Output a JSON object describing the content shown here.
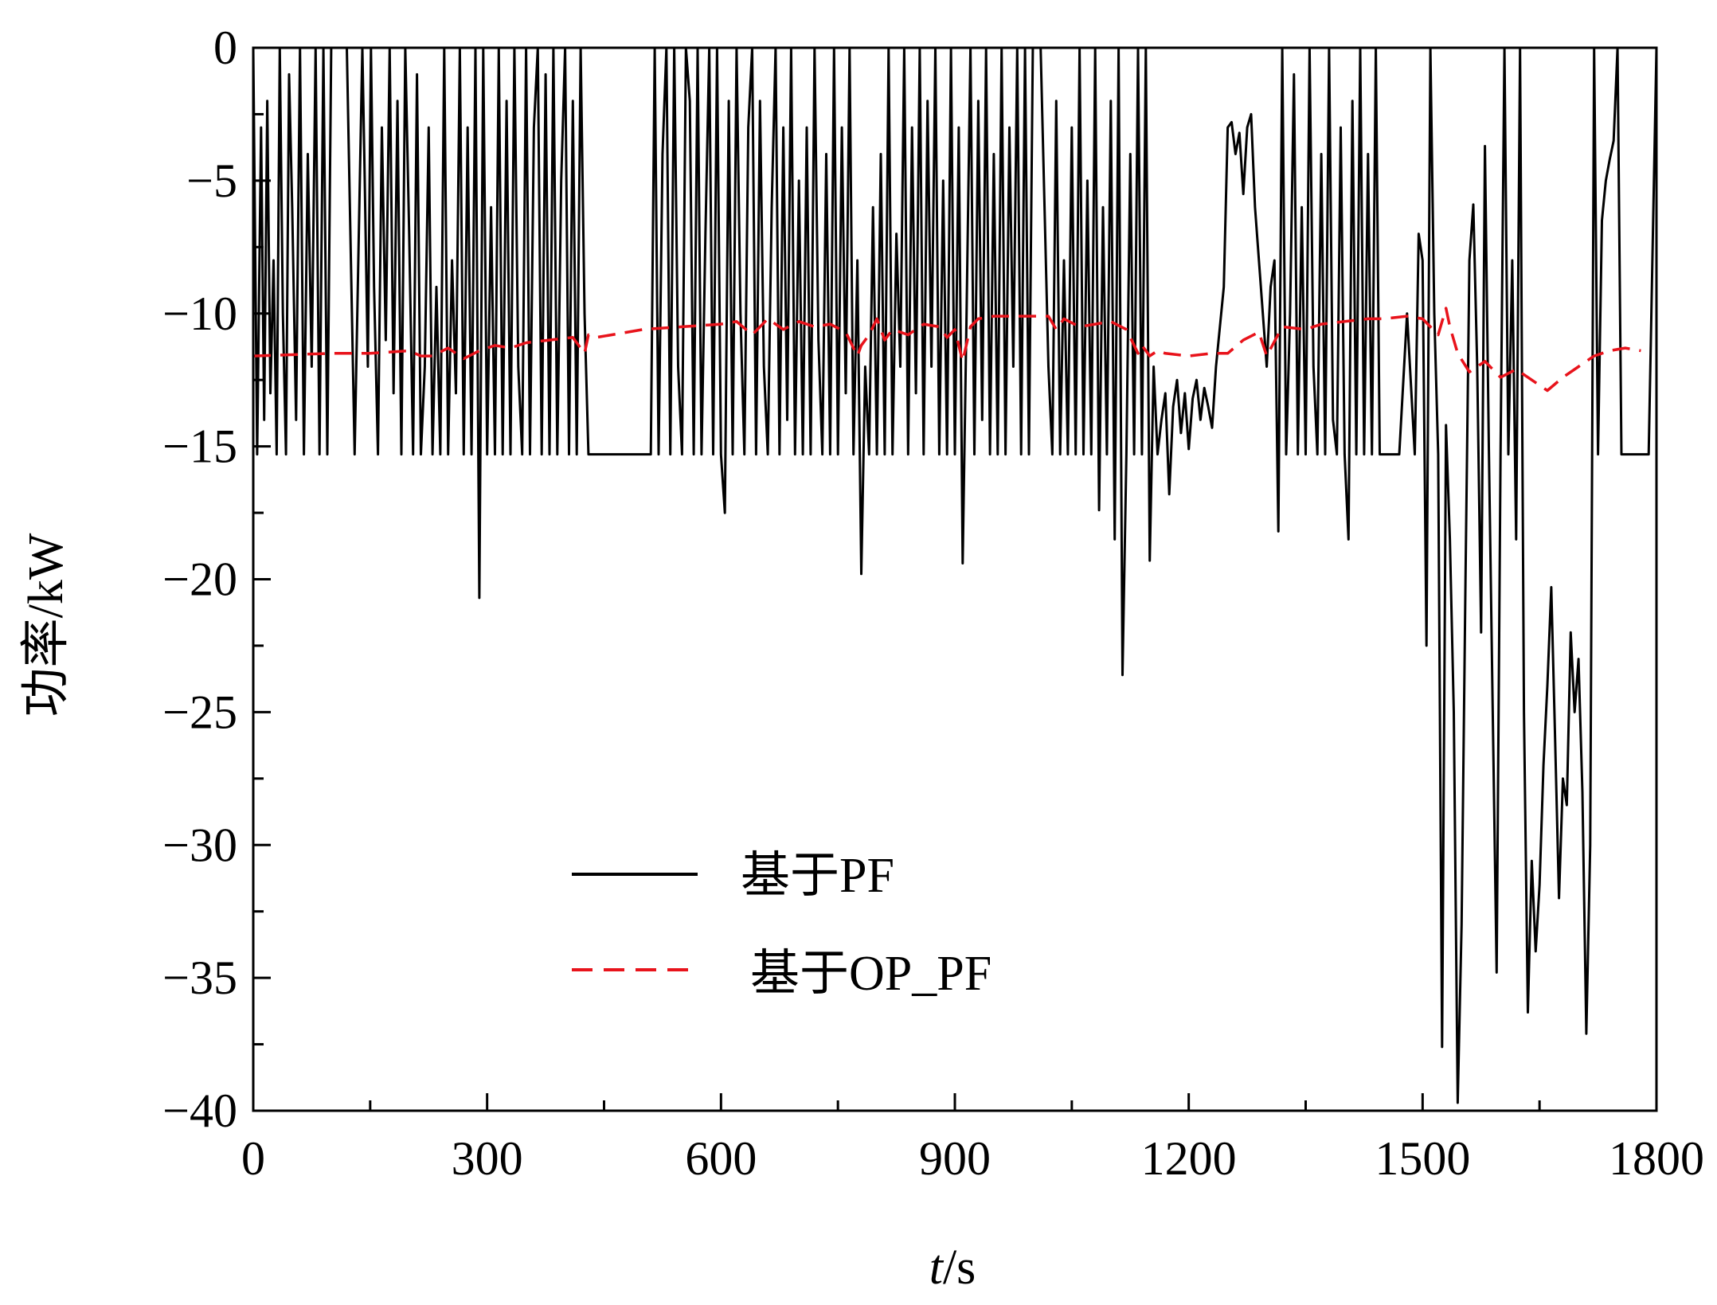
{
  "chart_data": {
    "type": "line",
    "title": "",
    "xlabel": {
      "italic": "t",
      "rest": "/s"
    },
    "ylabel": "功率/kW",
    "xlim": [
      0,
      1800
    ],
    "ylim": [
      -40,
      0
    ],
    "xticks": [
      0,
      300,
      600,
      900,
      1200,
      1500,
      1800
    ],
    "xtick_labels": [
      "0",
      "300",
      "600",
      "900",
      "1200",
      "1500",
      "1800"
    ],
    "yticks": [
      0,
      -5,
      -10,
      -15,
      -20,
      -25,
      -30,
      -35,
      -40
    ],
    "ytick_labels": [
      "0",
      "−5",
      "−10",
      "−15",
      "−20",
      "−25",
      "−30",
      "−35",
      "−40"
    ],
    "grid": false,
    "legend_position": "lower-center",
    "series": [
      {
        "name": "基于PF",
        "color": "#000000",
        "style": "solid",
        "x": [
          0,
          5,
          10,
          14,
          18,
          22,
          26,
          30,
          34,
          38,
          42,
          46,
          50,
          55,
          60,
          65,
          70,
          75,
          80,
          85,
          90,
          95,
          100,
          110,
          120,
          130,
          140,
          143,
          147,
          151,
          155,
          160,
          165,
          170,
          175,
          180,
          185,
          190,
          195,
          200,
          205,
          210,
          215,
          220,
          225,
          230,
          235,
          240,
          245,
          250,
          255,
          260,
          265,
          270,
          275,
          280,
          285,
          290,
          295,
          300,
          305,
          310,
          315,
          320,
          325,
          330,
          335,
          340,
          345,
          350,
          355,
          360,
          365,
          370,
          375,
          380,
          385,
          390,
          395,
          400,
          405,
          410,
          415,
          420,
          425,
          430,
          440,
          450,
          460,
          470,
          480,
          490,
          500,
          510,
          515,
          520,
          525,
          530,
          535,
          540,
          545,
          550,
          555,
          560,
          565,
          570,
          575,
          580,
          585,
          590,
          595,
          600,
          605,
          610,
          615,
          620,
          625,
          630,
          635,
          640,
          645,
          650,
          655,
          660,
          665,
          670,
          675,
          680,
          685,
          690,
          695,
          700,
          705,
          710,
          715,
          720,
          725,
          730,
          735,
          740,
          745,
          750,
          755,
          760,
          765,
          770,
          775,
          780,
          785,
          790,
          795,
          800,
          805,
          810,
          815,
          820,
          825,
          830,
          835,
          840,
          845,
          850,
          855,
          860,
          865,
          870,
          875,
          880,
          885,
          890,
          895,
          900,
          905,
          910,
          915,
          920,
          925,
          930,
          935,
          940,
          945,
          950,
          955,
          960,
          965,
          970,
          975,
          980,
          985,
          990,
          995,
          1000,
          1010,
          1020,
          1025,
          1030,
          1035,
          1040,
          1045,
          1050,
          1055,
          1060,
          1065,
          1070,
          1075,
          1080,
          1085,
          1090,
          1095,
          1100,
          1105,
          1110,
          1115,
          1120,
          1125,
          1130,
          1135,
          1140,
          1145,
          1150,
          1155,
          1160,
          1165,
          1170,
          1175,
          1180,
          1185,
          1190,
          1195,
          1200,
          1205,
          1210,
          1215,
          1220,
          1225,
          1230,
          1235,
          1240,
          1245,
          1250,
          1255,
          1260,
          1265,
          1270,
          1275,
          1280,
          1285,
          1290,
          1295,
          1300,
          1305,
          1310,
          1315,
          1320,
          1325,
          1330,
          1335,
          1340,
          1345,
          1350,
          1355,
          1360,
          1365,
          1370,
          1375,
          1380,
          1385,
          1390,
          1395,
          1400,
          1405,
          1410,
          1415,
          1420,
          1425,
          1430,
          1435,
          1440,
          1445,
          1450,
          1460,
          1470,
          1480,
          1490,
          1495,
          1500,
          1505,
          1510,
          1515,
          1520,
          1525,
          1530,
          1535,
          1540,
          1545,
          1550,
          1555,
          1560,
          1565,
          1570,
          1575,
          1580,
          1585,
          1590,
          1595,
          1600,
          1605,
          1610,
          1615,
          1620,
          1625,
          1630,
          1635,
          1640,
          1645,
          1650,
          1655,
          1660,
          1665,
          1670,
          1675,
          1680,
          1685,
          1690,
          1695,
          1700,
          1705,
          1710,
          1715,
          1720,
          1725,
          1730,
          1735,
          1740,
          1745,
          1750,
          1755,
          1760,
          1770,
          1780,
          1790,
          1800
        ],
        "y": [
          0,
          -15.3,
          -3,
          -14,
          -2,
          -13,
          -8,
          -15.3,
          0,
          -10,
          -15.3,
          -1,
          -6,
          -14,
          0,
          -15.3,
          -4,
          -12,
          0,
          -15.3,
          0,
          -15.3,
          0,
          0,
          0,
          -15.3,
          0,
          -5,
          -12,
          0,
          -9,
          -15.3,
          -3,
          -11,
          0,
          -13,
          -2,
          -15.3,
          0,
          -7,
          -15.3,
          -1,
          -15.3,
          -12,
          -3,
          -15.3,
          -9,
          -15.3,
          0,
          -15.3,
          -8,
          -13,
          0,
          -15.3,
          -3,
          -15.3,
          0,
          -20.7,
          0,
          -15.3,
          -6,
          -15.3,
          0,
          -15.3,
          -2,
          -15.3,
          0,
          -12,
          -15.3,
          0,
          -15.3,
          -3,
          0,
          -15.3,
          -1,
          -15.3,
          0,
          -15.3,
          -5,
          0,
          -15.3,
          -2,
          -15.3,
          0,
          -10,
          -15.3,
          -15.3,
          -15.3,
          -15.3,
          -15.3,
          -15.3,
          -15.3,
          -15.3,
          -15.3,
          0,
          -15.3,
          -4,
          0,
          -15.3,
          0,
          -12,
          -15.3,
          0,
          -2,
          -15.3,
          0,
          -15.3,
          -7,
          0,
          -15.3,
          0,
          -15.3,
          -17.5,
          -2,
          -15.3,
          0,
          -10,
          -15.3,
          -3,
          0,
          -15.3,
          -2,
          -12,
          -15.3,
          -6,
          0,
          -15.3,
          -3,
          -14,
          0,
          -15.3,
          -5,
          -15.3,
          -3,
          -15.3,
          0,
          -11,
          -15.3,
          -4,
          -15.3,
          0,
          -15.3,
          -3,
          -13,
          0,
          -15.3,
          -8,
          -19.8,
          -12,
          -15.3,
          -6,
          -15.3,
          -4,
          -15.3,
          0,
          -15.3,
          -7,
          -12,
          0,
          -15.3,
          -3,
          -13,
          0,
          -15.3,
          -2,
          -12,
          0,
          -15.3,
          -5,
          -15.3,
          0,
          -15.3,
          -3,
          -19.4,
          -10,
          0,
          -15.3,
          -2,
          -14,
          0,
          -15.3,
          -4,
          -15.3,
          0,
          -15.3,
          -3,
          -12,
          0,
          -15.3,
          0,
          -15.3,
          0,
          0,
          -12,
          -15.3,
          -2,
          -15.3,
          -8,
          -15.3,
          -3,
          -15.3,
          0,
          -15.3,
          -5,
          -15.3,
          0,
          -17.4,
          -6,
          -15.3,
          -2,
          -18.5,
          0,
          -23.6,
          -15.3,
          -4,
          -15.3,
          0,
          -15.3,
          0,
          -19.3,
          -12,
          -15.3,
          -14,
          -13,
          -16.8,
          -13.5,
          -12.5,
          -14.5,
          -13,
          -15.1,
          -13.2,
          -12.5,
          -14,
          -12.8,
          -13.5,
          -14.3,
          -12,
          -10.5,
          -9,
          -3,
          -2.8,
          -4,
          -3.2,
          -5.5,
          -3,
          -2.5,
          -6,
          -8,
          -10,
          -12,
          -9,
          -8,
          -18.2,
          0,
          -15.3,
          -10,
          -1,
          -15.3,
          -6,
          -15.3,
          0,
          -12,
          -15.3,
          -4,
          -15.3,
          0,
          -14,
          -15.3,
          -3,
          -15.3,
          -18.5,
          -2,
          -15.3,
          0,
          -15.3,
          -4,
          -15.3,
          0,
          -15.3,
          -15.3,
          -15.3,
          -15.3,
          -10,
          -15.3,
          -7,
          -8,
          -22.5,
          0,
          -10,
          -15.3,
          -37.6,
          -14.2,
          -18.5,
          -25,
          -39.7,
          -33,
          -20,
          -8,
          -5.9,
          -12,
          -22,
          -3.7,
          -15,
          -25,
          -34.8,
          -15.3,
          0,
          -15.3,
          -8,
          -18.5,
          0,
          -25,
          -36.3,
          -30.6,
          -34,
          -31.5,
          -27,
          -24,
          -20.3,
          -26,
          -32,
          -27.5,
          -28.5,
          -22,
          -25,
          -23,
          -28,
          -37.1,
          -30,
          0,
          -15.3,
          -6.5,
          -5,
          -4.2,
          -3.5,
          0,
          -15.3,
          -15.3,
          -15.3,
          -15.3,
          -15.3,
          0
        ]
      },
      {
        "name": "基于OP_PF",
        "color": "#e8131b",
        "style": "dashed",
        "x": [
          0,
          100,
          150,
          200,
          215,
          230,
          250,
          270,
          290,
          310,
          330,
          350,
          380,
          410,
          425,
          430,
          440,
          460,
          500,
          550,
          600,
          620,
          640,
          660,
          680,
          700,
          720,
          740,
          760,
          775,
          780,
          790,
          800,
          810,
          820,
          840,
          860,
          880,
          890,
          900,
          910,
          920,
          930,
          950,
          980,
          1000,
          1020,
          1030,
          1040,
          1060,
          1080,
          1100,
          1120,
          1135,
          1140,
          1150,
          1160,
          1170,
          1200,
          1230,
          1250,
          1270,
          1290,
          1300,
          1320,
          1350,
          1370,
          1400,
          1430,
          1450,
          1480,
          1500,
          1520,
          1525,
          1530,
          1535,
          1545,
          1560,
          1580,
          1600,
          1620,
          1640,
          1660,
          1680,
          1700,
          1720,
          1740,
          1760,
          1780
        ],
        "y": [
          -11.6,
          -11.5,
          -11.5,
          -11.4,
          -11.6,
          -11.6,
          -11.3,
          -11.7,
          -11.4,
          -11.2,
          -11.3,
          -11.1,
          -11.0,
          -10.9,
          -11.5,
          -10.8,
          -10.9,
          -10.8,
          -10.6,
          -10.5,
          -10.4,
          -10.3,
          -10.8,
          -10.2,
          -10.6,
          -10.3,
          -10.5,
          -10.4,
          -10.7,
          -11.6,
          -11.2,
          -10.8,
          -10.2,
          -11.0,
          -10.6,
          -10.8,
          -10.4,
          -10.5,
          -10.9,
          -10.6,
          -11.8,
          -10.5,
          -10.2,
          -10.1,
          -10.1,
          -10.1,
          -10.1,
          -10.6,
          -10.2,
          -10.5,
          -10.4,
          -10.3,
          -10.6,
          -11.5,
          -11.2,
          -11.6,
          -11.4,
          -11.5,
          -11.6,
          -11.5,
          -11.5,
          -11.0,
          -10.7,
          -11.6,
          -10.5,
          -10.6,
          -10.4,
          -10.3,
          -10.2,
          -10.2,
          -10.1,
          -10.2,
          -10.8,
          -10.3,
          -9.8,
          -10.5,
          -11.5,
          -12.2,
          -11.8,
          -12.4,
          -12.1,
          -12.5,
          -12.9,
          -12.4,
          -12.0,
          -11.6,
          -11.4,
          -11.3,
          -11.4
        ]
      }
    ]
  }
}
